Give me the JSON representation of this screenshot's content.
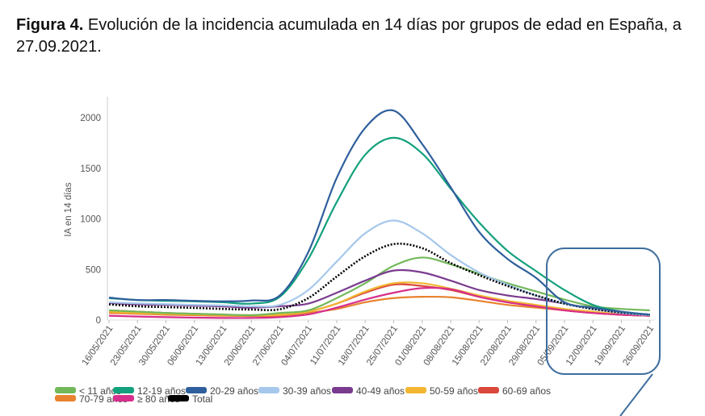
{
  "figure": {
    "label": "Figura 4.",
    "caption": "Evolución de la incidencia acumulada en 14 días por grupos de edad en España, a 27.09.2021."
  },
  "chart_data": {
    "type": "line",
    "title": "Evolución de la incidencia acumulada en 14 días por grupos de edad en España, a 27.09.2021.",
    "xlabel": "",
    "ylabel": "IA en 14 días",
    "ylim": [
      0,
      2100
    ],
    "yticks": [
      0,
      500,
      1000,
      1500,
      2000
    ],
    "grid": false,
    "legend_position": "bottom",
    "x": [
      "16/05/2021",
      "23/05/2021",
      "30/05/2021",
      "06/06/2021",
      "13/06/2021",
      "20/06/2021",
      "27/06/2021",
      "04/07/2021",
      "11/07/2021",
      "18/07/2021",
      "25/07/2021",
      "01/08/2021",
      "08/08/2021",
      "15/08/2021",
      "22/08/2021",
      "29/08/2021",
      "05/09/2021",
      "12/09/2021",
      "19/09/2021",
      "26/09/2021"
    ],
    "series": [
      {
        "name": "< 11 años",
        "color": "#72b85a",
        "values": [
          96,
          83,
          70,
          62,
          56,
          48,
          70,
          96,
          217,
          364,
          537,
          618,
          551,
          457,
          364,
          283,
          203,
          136,
          110,
          96
        ]
      },
      {
        "name": "12-19 años",
        "color": "#13a07c",
        "values": [
          217,
          198,
          190,
          185,
          176,
          163,
          230,
          604,
          1166,
          1634,
          1802,
          1647,
          1300,
          965,
          684,
          484,
          297,
          150,
          83,
          53
        ]
      },
      {
        "name": "20-29 años",
        "color": "#2e5f9c",
        "values": [
          222,
          198,
          198,
          190,
          185,
          193,
          243,
          671,
          1406,
          1900,
          2070,
          1740,
          1313,
          872,
          604,
          417,
          176,
          123,
          83,
          53
        ]
      },
      {
        "name": "30-39 años",
        "color": "#a6c8eb",
        "values": [
          176,
          165,
          158,
          150,
          145,
          136,
          150,
          297,
          578,
          858,
          984,
          858,
          644,
          471,
          350,
          243,
          163,
          110,
          70,
          48
        ]
      },
      {
        "name": "40-49 años",
        "color": "#7a3b8f",
        "values": [
          168,
          155,
          150,
          142,
          134,
          123,
          136,
          163,
          270,
          390,
          489,
          471,
          390,
          297,
          243,
          208,
          163,
          110,
          75,
          53
        ]
      },
      {
        "name": "50-59 años",
        "color": "#f2b632",
        "values": [
          83,
          70,
          62,
          56,
          51,
          48,
          53,
          83,
          163,
          283,
          364,
          364,
          310,
          243,
          190,
          150,
          110,
          83,
          56,
          43
        ]
      },
      {
        "name": "60-69 años",
        "color": "#d9483b",
        "values": [
          96,
          83,
          70,
          62,
          53,
          48,
          53,
          83,
          163,
          270,
          350,
          337,
          297,
          230,
          176,
          136,
          96,
          70,
          53,
          43
        ]
      },
      {
        "name": "70-79 años",
        "color": "#e8822e",
        "values": [
          70,
          62,
          53,
          48,
          43,
          40,
          43,
          70,
          110,
          176,
          217,
          230,
          225,
          190,
          150,
          123,
          96,
          70,
          53,
          43
        ]
      },
      {
        "name": "≥ 80 años",
        "color": "#d62f8c",
        "values": [
          43,
          35,
          29,
          24,
          21,
          21,
          29,
          56,
          123,
          203,
          270,
          316,
          305,
          230,
          176,
          136,
          96,
          70,
          53,
          43
        ]
      },
      {
        "name": "Total",
        "color": "#000000",
        "dashed": true,
        "values": [
          155,
          136,
          128,
          120,
          110,
          104,
          107,
          217,
          430,
          631,
          751,
          711,
          564,
          444,
          337,
          243,
          163,
          110,
          75,
          53
        ]
      }
    ],
    "annotations": [
      "highlight box around 05/09/2021 – 26/09/2021"
    ]
  }
}
